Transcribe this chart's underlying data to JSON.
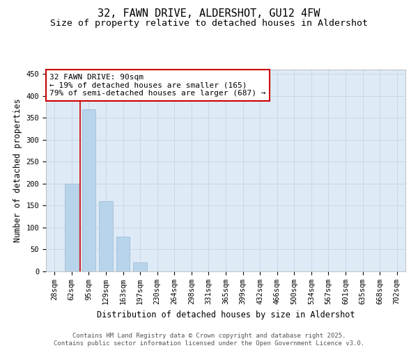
{
  "title": "32, FAWN DRIVE, ALDERSHOT, GU12 4FW",
  "subtitle": "Size of property relative to detached houses in Aldershot",
  "xlabel": "Distribution of detached houses by size in Aldershot",
  "ylabel": "Number of detached properties",
  "categories": [
    "28sqm",
    "62sqm",
    "95sqm",
    "129sqm",
    "163sqm",
    "197sqm",
    "230sqm",
    "264sqm",
    "298sqm",
    "331sqm",
    "365sqm",
    "399sqm",
    "432sqm",
    "466sqm",
    "500sqm",
    "534sqm",
    "567sqm",
    "601sqm",
    "635sqm",
    "668sqm",
    "702sqm"
  ],
  "values": [
    0,
    200,
    370,
    160,
    80,
    20,
    0,
    0,
    0,
    0,
    0,
    0,
    0,
    0,
    0,
    0,
    0,
    0,
    0,
    0,
    0
  ],
  "bar_color": "#b8d4ea",
  "bar_edge_color": "#9ab8d4",
  "grid_color": "#c8d8e8",
  "background_color": "#deeaf6",
  "red_line_x": 1.5,
  "red_line_color": "#cc0000",
  "annotation_line1": "32 FAWN DRIVE: 90sqm",
  "annotation_line2": "← 19% of detached houses are smaller (165)",
  "annotation_line3": "79% of semi-detached houses are larger (687) →",
  "annotation_box_color": "#cc0000",
  "ylim": [
    0,
    460
  ],
  "yticks": [
    0,
    50,
    100,
    150,
    200,
    250,
    300,
    350,
    400,
    450
  ],
  "title_fontsize": 11,
  "subtitle_fontsize": 9.5,
  "axis_label_fontsize": 8.5,
  "tick_fontsize": 7.5,
  "annotation_fontsize": 8,
  "footer_line1": "Contains HM Land Registry data © Crown copyright and database right 2025.",
  "footer_line2": "Contains public sector information licensed under the Open Government Licence v3.0.",
  "footer_fontsize": 6.5
}
